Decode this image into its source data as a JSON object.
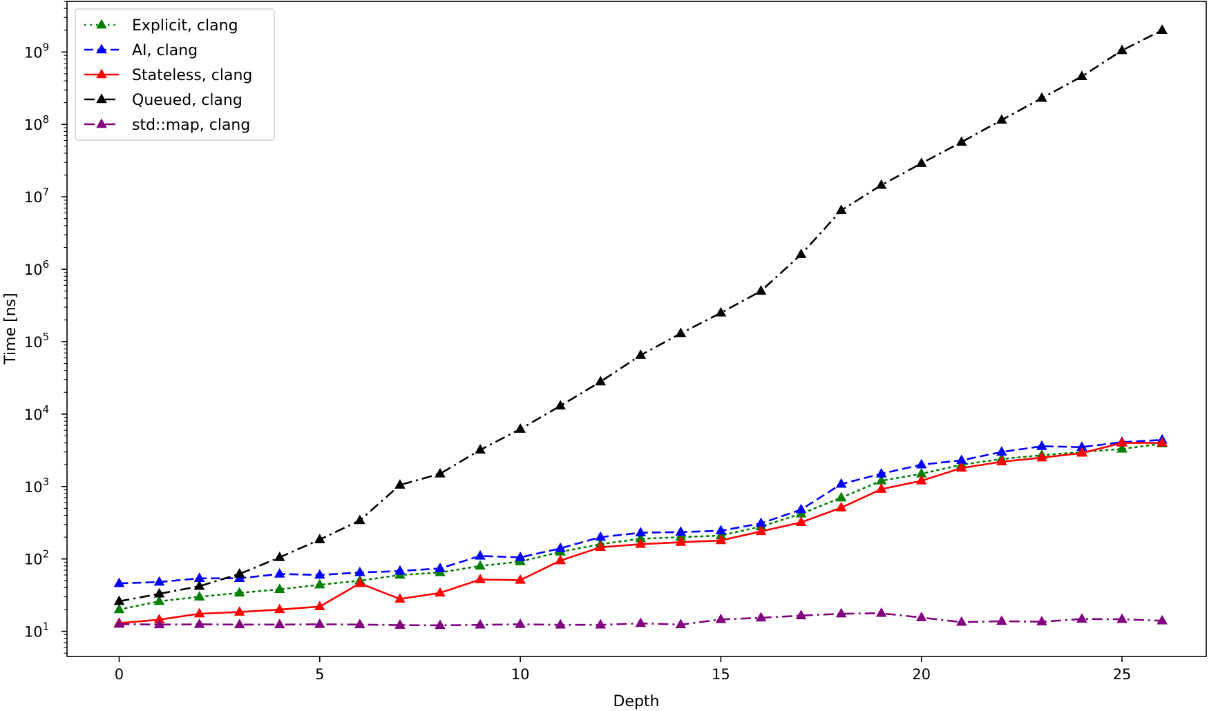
{
  "chart_data": {
    "type": "line",
    "xlabel": "Depth",
    "ylabel": "Time [ns]",
    "xlim": [
      -1.3,
      27.1
    ],
    "ylim": [
      4.5,
      5000000000
    ],
    "y_scale": "log",
    "grid": false,
    "legend_position": "top-left",
    "x_ticks": [
      0,
      5,
      10,
      15,
      20,
      25
    ],
    "y_ticks": [
      {
        "value": 10,
        "base": "10",
        "exp": "1"
      },
      {
        "value": 100,
        "base": "10",
        "exp": "2"
      },
      {
        "value": 1000,
        "base": "10",
        "exp": "3"
      },
      {
        "value": 10000,
        "base": "10",
        "exp": "4"
      },
      {
        "value": 100000,
        "base": "10",
        "exp": "5"
      },
      {
        "value": 1000000,
        "base": "10",
        "exp": "6"
      },
      {
        "value": 10000000,
        "base": "10",
        "exp": "7"
      },
      {
        "value": 100000000,
        "base": "10",
        "exp": "8"
      },
      {
        "value": 1000000000,
        "base": "10",
        "exp": "9"
      }
    ],
    "x": [
      0,
      1,
      2,
      3,
      4,
      5,
      6,
      7,
      8,
      9,
      10,
      11,
      12,
      13,
      14,
      15,
      16,
      17,
      18,
      19,
      20,
      21,
      22,
      23,
      24,
      25,
      26
    ],
    "series": [
      {
        "name": "Explicit, clang",
        "color": "#008000",
        "dash": "dotted",
        "values": [
          20,
          26,
          30,
          34,
          38,
          44,
          50,
          60,
          65,
          80,
          92,
          125,
          160,
          190,
          200,
          210,
          280,
          420,
          700,
          1200,
          1500,
          2000,
          2400,
          2700,
          3000,
          3300,
          3900
        ]
      },
      {
        "name": "AI, clang",
        "color": "#0000ff",
        "dash": "dashed",
        "values": [
          46,
          48,
          54,
          54,
          62,
          60,
          65,
          68,
          74,
          110,
          105,
          140,
          200,
          230,
          235,
          245,
          310,
          480,
          1080,
          1500,
          2000,
          2300,
          3000,
          3600,
          3500,
          4100,
          4400
        ]
      },
      {
        "name": "Stateless, clang",
        "color": "#ff0000",
        "dash": "solid",
        "values": [
          13,
          14.5,
          17.5,
          18.5,
          20,
          22,
          46,
          28,
          34,
          52,
          51,
          95,
          145,
          160,
          170,
          180,
          240,
          320,
          510,
          920,
          1200,
          1800,
          2200,
          2500,
          2900,
          4000,
          4000
        ]
      },
      {
        "name": "Queued, clang",
        "color": "#000000",
        "dash": "dashdot",
        "values": [
          26,
          33,
          42,
          62,
          105,
          185,
          340,
          1050,
          1500,
          3200,
          6200,
          13000,
          28000,
          65000,
          130000,
          250000,
          500000,
          1600000,
          6500000,
          14500000,
          29000000,
          57000000,
          115000000,
          230000000,
          460000000,
          1050000000,
          2000000000
        ]
      },
      {
        "name": "std::map, clang",
        "color": "#800080",
        "dash": "dashdot",
        "values": [
          12.6,
          12.4,
          12.5,
          12.4,
          12.4,
          12.5,
          12.4,
          12.2,
          12.1,
          12.3,
          12.5,
          12.3,
          12.3,
          12.9,
          12.4,
          14.6,
          15.4,
          16.5,
          17.5,
          17.8,
          15.5,
          13.4,
          13.8,
          13.6,
          14.8,
          14.7,
          14
        ]
      }
    ]
  }
}
